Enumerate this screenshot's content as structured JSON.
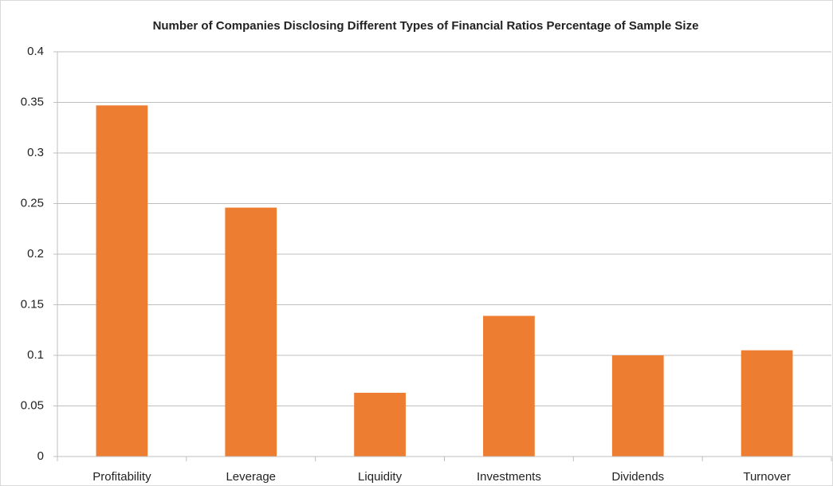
{
  "chart_data": {
    "type": "bar",
    "title": "Number of Companies Disclosing Different Types of Financial Ratios Percentage of Sample Size",
    "categories": [
      "Profitability",
      "Leverage",
      "Liquidity",
      "Investments",
      "Dividends",
      "Turnover"
    ],
    "values": [
      0.347,
      0.246,
      0.063,
      0.139,
      0.1,
      0.105
    ],
    "color": "#ed7d31",
    "ylim": [
      0,
      0.4
    ],
    "yticks": [
      0,
      0.05,
      0.1,
      0.15,
      0.2,
      0.25,
      0.3,
      0.35,
      0.4
    ],
    "grid": true
  }
}
